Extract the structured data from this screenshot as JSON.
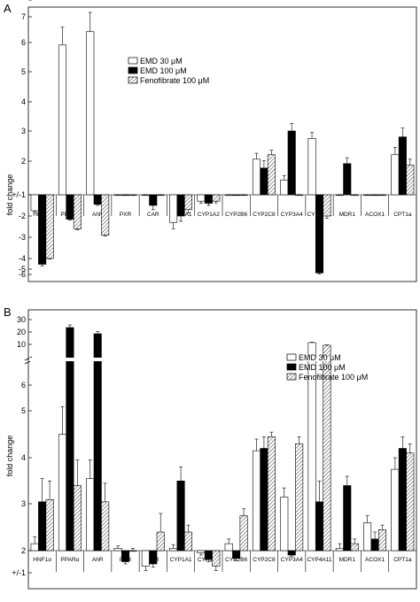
{
  "chart_data": [
    {
      "panel": "A",
      "type": "bar",
      "ylabel": "fold change",
      "categories": [
        "HNF1α",
        "PPARα",
        "AhR",
        "PXR",
        "CAR",
        "CYP1A1",
        "CYP1A2",
        "CYP2B6",
        "CYP2C8",
        "CYP3A4",
        "CYP4A11",
        "MDR1",
        "ACOX1",
        "CPT1a"
      ],
      "series": [
        {
          "name": "EMD 30 μM",
          "fill": "#ffffff",
          "values": [
            -1.75,
            6.05,
            6.5,
            0.1,
            -0.35,
            -2.3,
            -1.3,
            0.02,
            2.2,
            1.5,
            2.9,
            0.05,
            0.05,
            2.35
          ],
          "errors": [
            0.05,
            0.6,
            0.65,
            0.08,
            0.15,
            0.3,
            0.1,
            0.05,
            0.2,
            0.15,
            0.2,
            0.08,
            0.05,
            0.25
          ]
        },
        {
          "name": "EMD 100 μM",
          "fill": "#000000",
          "values": [
            -5.0,
            -2.15,
            -1.45,
            -0.2,
            -1.5,
            -2.0,
            -1.4,
            -0.05,
            1.9,
            3.15,
            -6.5,
            2.05,
            0.05,
            2.95
          ],
          "errors": [
            0.3,
            0.05,
            0.05,
            0.08,
            0.2,
            0.25,
            0.1,
            0.05,
            0.25,
            0.25,
            0.2,
            0.2,
            0.05,
            0.3
          ]
        },
        {
          "name": "Fenofibrate 100 μM",
          "fill": "hatch",
          "values": [
            -4.0,
            -2.6,
            -2.9,
            -0.05,
            0.03,
            -1.7,
            -1.3,
            0.02,
            2.35,
            0.05,
            -2.0,
            0.0,
            -0.1,
            2.0
          ],
          "errors": [
            0.1,
            0.05,
            0.05,
            0.06,
            0.1,
            0.15,
            0.08,
            0.05,
            0.15,
            0.08,
            0.1,
            0.05,
            0.05,
            0.2
          ]
        }
      ],
      "yticks": [
        "7",
        "6",
        "5",
        "4",
        "3",
        "2",
        "+/-1",
        "-2",
        "-3",
        "-4",
        "-5",
        "-6"
      ],
      "legend_position": "top-center",
      "grid": false
    },
    {
      "panel": "B",
      "type": "bar",
      "ylabel": "fold change",
      "categories": [
        "HNF1α",
        "PPARα",
        "AhR",
        "PXR",
        "CAR",
        "CYP1A1",
        "CYP1A2",
        "CYP2B6",
        "CYP2C8",
        "CYP3A4",
        "CYP4A11",
        "MDR1",
        "ACOX1",
        "CPT1a"
      ],
      "series": [
        {
          "name": "EMD 30 μM",
          "fill": "#ffffff",
          "values": [
            1.15,
            3.5,
            2.55,
            1.05,
            -1.7,
            1.05,
            -1.1,
            1.15,
            3.15,
            2.15,
            11,
            1.05,
            1.6,
            2.75
          ],
          "errors": [
            0.15,
            0.6,
            0.4,
            0.05,
            0.2,
            0.08,
            0.1,
            0.1,
            0.25,
            0.2,
            0.5,
            0.1,
            0.15,
            0.25
          ]
        },
        {
          "name": "EMD 100 μM",
          "fill": "#000000",
          "values": [
            2.05,
            28,
            21,
            -1.5,
            -1.6,
            2.5,
            -1.4,
            -1.35,
            3.2,
            -1.2,
            2.05,
            2.4,
            1.25,
            3.2
          ],
          "errors": [
            0.5,
            3,
            2.5,
            0.1,
            0.15,
            0.3,
            0.1,
            0.1,
            0.25,
            0.05,
            0.45,
            0.2,
            0.15,
            0.25
          ]
        },
        {
          "name": "Fenofibrate 100 μM",
          "fill": "hatch",
          "values": [
            2.1,
            2.4,
            2.05,
            1.0,
            1.4,
            1.4,
            -1.7,
            1.75,
            3.45,
            3.3,
            8,
            1.15,
            1.45,
            3.1
          ],
          "errors": [
            0.4,
            0.55,
            0.4,
            0.05,
            0.4,
            0.15,
            0.2,
            0.15,
            0.1,
            0.15,
            0.4,
            0.1,
            0.1,
            0.2
          ]
        }
      ],
      "yticks": [
        "30",
        "20",
        "10",
        "6",
        "5",
        "4",
        "3",
        "2",
        "+/-1",
        "-2"
      ],
      "legend_position": "top-right",
      "grid": false
    }
  ]
}
